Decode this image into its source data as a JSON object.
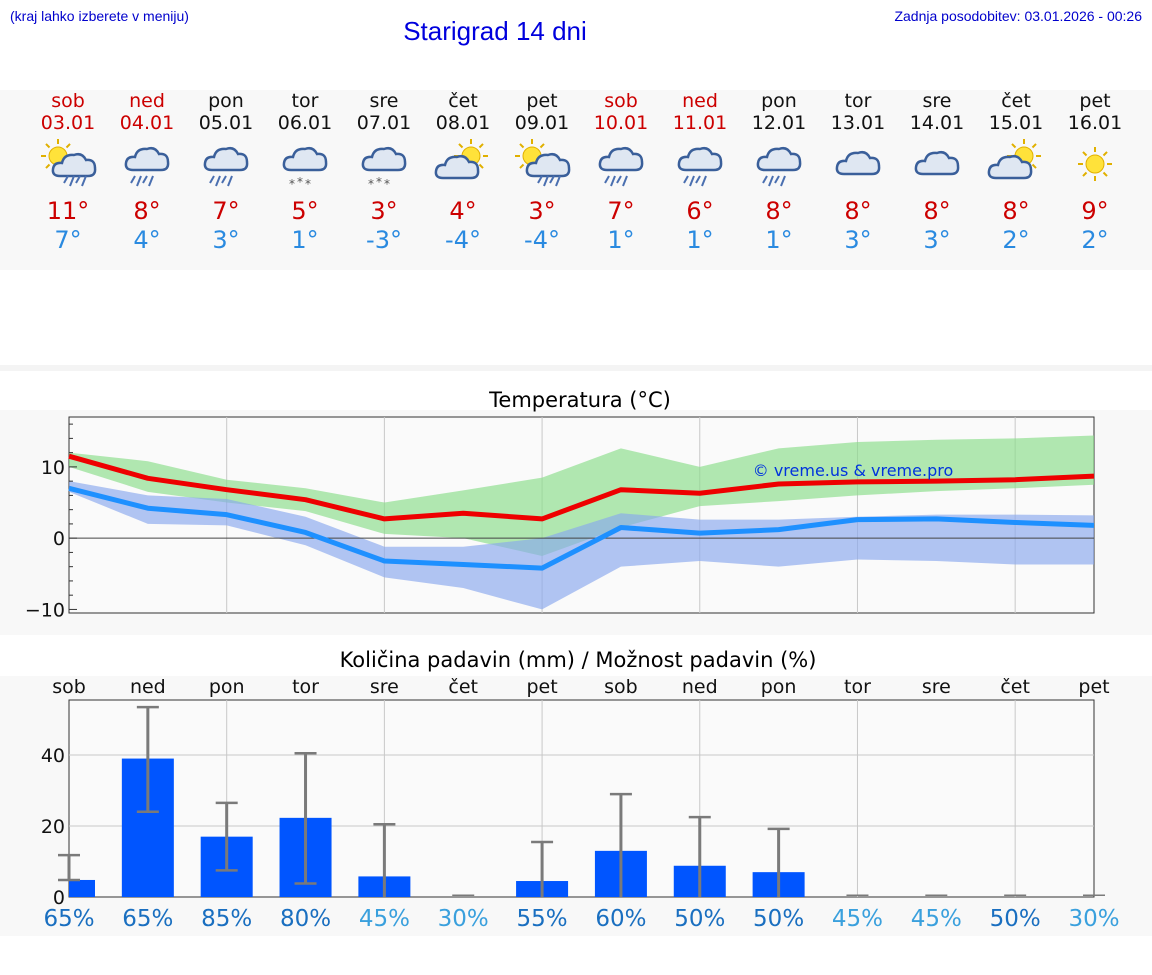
{
  "header": {
    "hint": "(kraj lahko izberete v meniju)",
    "title": "Starigrad 14 dni",
    "updated": "Zadnja posodobitev: 03.01.2026 - 00:26"
  },
  "days": [
    {
      "name": "sob",
      "date": "03.01",
      "weekend": true,
      "max": "11°",
      "min": "7°",
      "icon": "sun-cloud-rain-icon"
    },
    {
      "name": "ned",
      "date": "04.01",
      "weekend": true,
      "max": "8°",
      "min": "4°",
      "icon": "cloud-rain-icon"
    },
    {
      "name": "pon",
      "date": "05.01",
      "weekend": false,
      "max": "7°",
      "min": "3°",
      "icon": "cloud-rain-icon"
    },
    {
      "name": "tor",
      "date": "06.01",
      "weekend": false,
      "max": "5°",
      "min": "1°",
      "icon": "cloud-snow-icon"
    },
    {
      "name": "sre",
      "date": "07.01",
      "weekend": false,
      "max": "3°",
      "min": "-3°",
      "icon": "cloud-snow-icon"
    },
    {
      "name": "čet",
      "date": "08.01",
      "weekend": false,
      "max": "4°",
      "min": "-4°",
      "icon": "sun-cloud-icon"
    },
    {
      "name": "pet",
      "date": "09.01",
      "weekend": false,
      "max": "3°",
      "min": "-4°",
      "icon": "sun-cloud-rain-icon"
    },
    {
      "name": "sob",
      "date": "10.01",
      "weekend": true,
      "max": "7°",
      "min": "1°",
      "icon": "cloud-rain-icon"
    },
    {
      "name": "ned",
      "date": "11.01",
      "weekend": true,
      "max": "6°",
      "min": "1°",
      "icon": "cloud-rain-icon"
    },
    {
      "name": "pon",
      "date": "12.01",
      "weekend": false,
      "max": "8°",
      "min": "1°",
      "icon": "cloud-rain-icon"
    },
    {
      "name": "tor",
      "date": "13.01",
      "weekend": false,
      "max": "8°",
      "min": "3°",
      "icon": "cloud-icon"
    },
    {
      "name": "sre",
      "date": "14.01",
      "weekend": false,
      "max": "8°",
      "min": "3°",
      "icon": "cloud-icon"
    },
    {
      "name": "čet",
      "date": "15.01",
      "weekend": false,
      "max": "8°",
      "min": "2°",
      "icon": "sun-cloud-icon"
    },
    {
      "name": "pet",
      "date": "16.01",
      "weekend": false,
      "max": "9°",
      "min": "2°",
      "icon": "sun-icon"
    }
  ],
  "colors": {
    "weekend": "#cc0000",
    "weekday": "#111111",
    "max": "#cc0000",
    "min": "#2a8ae0",
    "bar": "#0055ff",
    "pct_dark": "#1a6fc0",
    "pct_light": "#3aa0dd"
  },
  "chart_data": [
    {
      "type": "line",
      "title": "Temperatura (°C)",
      "watermark": "© vreme.us & vreme.pro",
      "x": [
        0,
        1,
        2,
        3,
        4,
        5,
        6,
        7,
        8,
        9,
        10,
        11,
        12,
        13
      ],
      "ylim": [
        -10.5,
        17
      ],
      "yticks": [
        -10,
        0,
        10
      ],
      "series": [
        {
          "name": "max",
          "color": "#ee0000",
          "values": [
            11.5,
            8.4,
            6.8,
            5.4,
            2.7,
            3.5,
            2.7,
            6.8,
            6.3,
            7.6,
            7.9,
            8.0,
            8.2,
            8.7
          ]
        },
        {
          "name": "min",
          "color": "#1e90ff",
          "values": [
            7.0,
            4.2,
            3.3,
            0.8,
            -3.2,
            -3.7,
            -4.2,
            1.5,
            0.7,
            1.2,
            2.6,
            2.7,
            2.2,
            1.8
          ]
        }
      ],
      "bands": [
        {
          "name": "max range",
          "color": "#88dd88",
          "upper": [
            12.0,
            10.8,
            8.2,
            7.0,
            5.0,
            6.7,
            8.5,
            12.6,
            10.0,
            12.6,
            13.5,
            13.8,
            14.0,
            14.4
          ],
          "lower": [
            10.0,
            6.5,
            5.0,
            3.8,
            0.6,
            0.0,
            -2.5,
            1.5,
            4.5,
            5.2,
            6.0,
            6.6,
            7.0,
            7.5
          ]
        },
        {
          "name": "min range",
          "color": "#88a8ee",
          "upper": [
            8.0,
            6.0,
            5.5,
            3.0,
            -1.2,
            -1.2,
            0.0,
            3.5,
            2.6,
            2.6,
            3.0,
            3.3,
            3.3,
            3.2
          ],
          "lower": [
            6.5,
            2.0,
            1.8,
            -1.0,
            -5.5,
            -7.0,
            -10.0,
            -4.0,
            -3.2,
            -4.0,
            -3.0,
            -3.2,
            -3.7,
            -3.7
          ]
        }
      ]
    },
    {
      "type": "bar",
      "title": "Količina padavin (mm) / Možnost padavin (%)",
      "categories": [
        "sob",
        "ned",
        "pon",
        "tor",
        "sre",
        "čet",
        "pet",
        "sob",
        "ned",
        "pon",
        "tor",
        "sre",
        "čet",
        "pet"
      ],
      "values": [
        4.8,
        39,
        17,
        22.3,
        5.8,
        0,
        4.5,
        13,
        8.8,
        7.0,
        0,
        0,
        0,
        0
      ],
      "err_low": [
        4.8,
        24,
        7.5,
        3.8,
        0,
        0,
        0,
        0,
        0,
        0,
        0,
        0,
        0,
        0
      ],
      "err_high": [
        11.8,
        53.5,
        26.5,
        40.5,
        20.5,
        0.5,
        15.5,
        29,
        22.5,
        19.2,
        0.5,
        0.5,
        0.5,
        0.5
      ],
      "probability": [
        "65%",
        "65%",
        "85%",
        "80%",
        "45%",
        "30%",
        "55%",
        "60%",
        "50%",
        "50%",
        "45%",
        "45%",
        "50%",
        "30%"
      ],
      "ylim": [
        0,
        55.5
      ],
      "yticks": [
        0,
        20,
        40
      ]
    }
  ]
}
